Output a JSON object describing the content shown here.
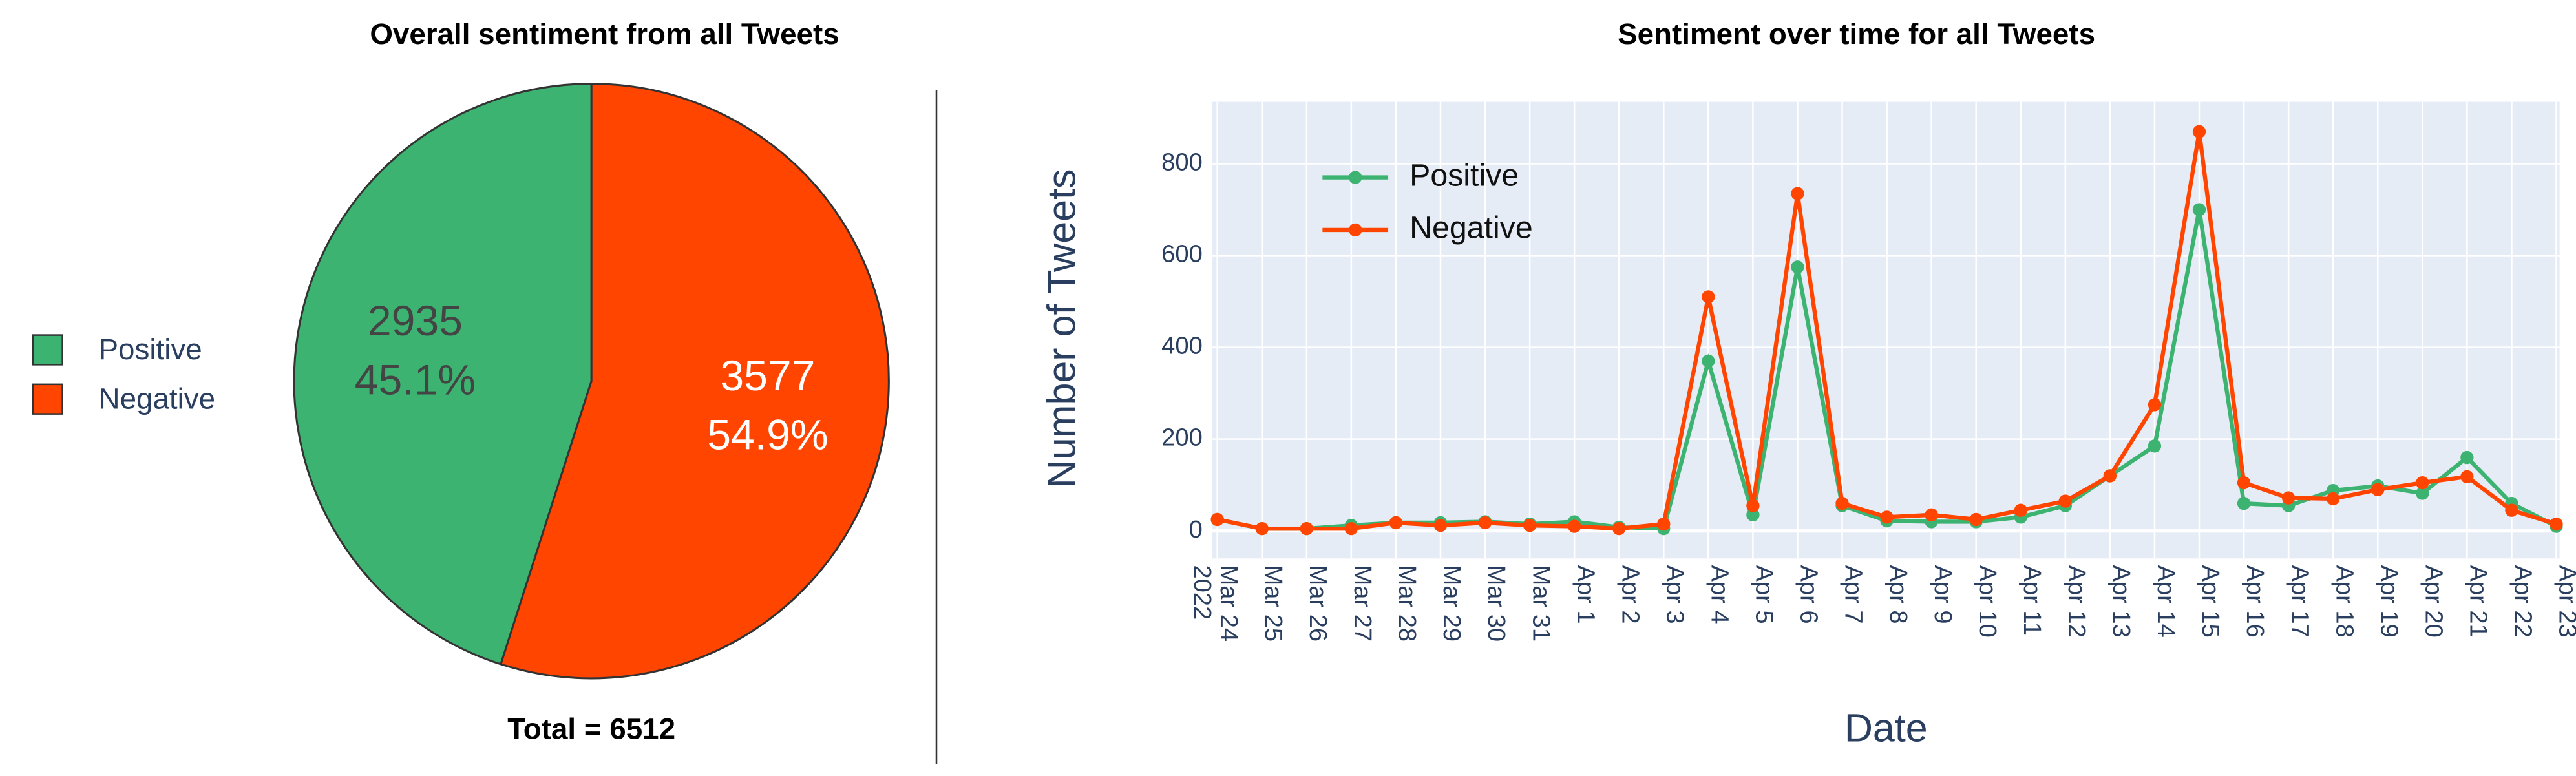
{
  "chart_data": [
    {
      "type": "pie",
      "title": "Overall sentiment from all Tweets",
      "footer": "Total = 6512",
      "categories": [
        "Positive",
        "Negative"
      ],
      "values": [
        2935,
        3577
      ],
      "percent_labels": [
        "45.1%",
        "54.9%"
      ],
      "colors": [
        "#3cb371",
        "#ff4500"
      ],
      "legend": "left"
    },
    {
      "type": "line",
      "title": "Sentiment over time for all Tweets",
      "xlabel": "Date",
      "ylabel": "Number of Tweets",
      "categories": [
        "Mar 24",
        "Mar 25",
        "Mar 26",
        "Mar 27",
        "Mar 28",
        "Mar 29",
        "Mar 30",
        "Mar 31",
        "Apr 1",
        "Apr 2",
        "Apr 3",
        "Apr 4",
        "Apr 5",
        "Apr 6",
        "Apr 7",
        "Apr 8",
        "Apr 9",
        "Apr 10",
        "Apr 11",
        "Apr 12",
        "Apr 13",
        "Apr 14",
        "Apr 15",
        "Apr 16",
        "Apr 17",
        "Apr 18",
        "Apr 19",
        "Apr 20",
        "Apr 21",
        "Apr 22",
        "Apr 23"
      ],
      "year": "2022",
      "series": [
        {
          "name": "Positive",
          "color": "#3cb371",
          "values": [
            25,
            5,
            5,
            12,
            18,
            18,
            20,
            15,
            20,
            8,
            5,
            370,
            35,
            575,
            55,
            22,
            20,
            20,
            30,
            55,
            120,
            185,
            700,
            60,
            55,
            88,
            98,
            82,
            160,
            60,
            10
          ]
        },
        {
          "name": "Negative",
          "color": "#ff4500",
          "values": [
            25,
            5,
            5,
            5,
            18,
            12,
            18,
            12,
            10,
            5,
            15,
            510,
            55,
            735,
            60,
            30,
            35,
            25,
            45,
            65,
            120,
            275,
            870,
            105,
            72,
            70,
            90,
            105,
            118,
            45,
            15
          ]
        }
      ],
      "ylim": [
        -60,
        935
      ],
      "yticks": [
        0,
        200,
        400,
        600,
        800
      ],
      "grid": true,
      "legend": "upper left"
    }
  ]
}
